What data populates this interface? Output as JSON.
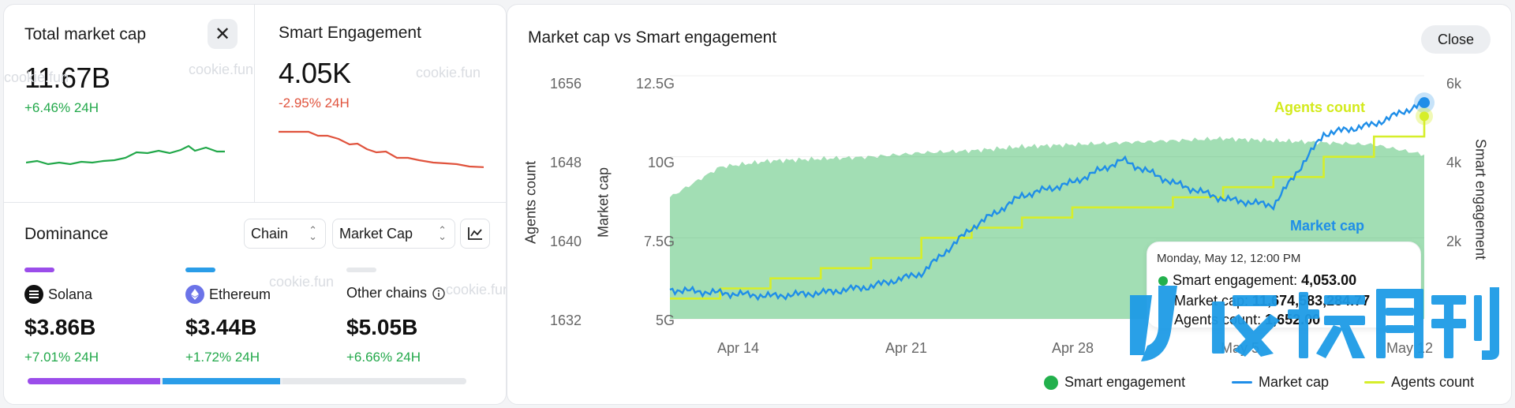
{
  "market_cap_card": {
    "title": "Total market cap",
    "value": "11.67B",
    "change": "+6.46% 24H",
    "close_symbol": "✕"
  },
  "engagement_card": {
    "title": "Smart Engagement",
    "value": "4.05K",
    "change": "-2.95% 24H"
  },
  "watermark": "cookie.fun",
  "dominance": {
    "title": "Dominance",
    "chain_dropdown": "Chain",
    "metric_dropdown": "Market Cap",
    "chains": [
      {
        "name": "Solana",
        "value": "$3.86B",
        "change": "+7.01% 24H",
        "color": "#9b4dea",
        "share": 0.305
      },
      {
        "name": "Ethereum",
        "value": "$3.44B",
        "change": "+1.72% 24H",
        "color": "#2a9de8",
        "share": 0.272
      },
      {
        "name": "Other chains",
        "value": "$5.05B",
        "change": "+6.66% 24H",
        "color": "#e6e8eb",
        "share": 0.423
      }
    ]
  },
  "chart": {
    "title": "Market cap vs Smart engagement",
    "close_label": "Close",
    "agents_axis_label": "Agents count",
    "mcap_axis_label": "Market cap",
    "engagement_axis_label": "Smart engagement",
    "agents_ticks": [
      "1656",
      "1648",
      "1640",
      "1632"
    ],
    "mcap_ticks": [
      "12.5G",
      "10G",
      "7.5G",
      "5G"
    ],
    "engagement_ticks": [
      "6k",
      "4k",
      "2k"
    ],
    "x_ticks": [
      "Apr 14",
      "Apr 21",
      "Apr 28",
      "May 5",
      "May 12"
    ],
    "inline_labels": {
      "agents": "Agents count",
      "mcap": "Market cap"
    },
    "tooltip": {
      "date": "Monday, May 12, 12:00 PM",
      "engagement_label": "Smart engagement: ",
      "engagement_value": "4,053.00",
      "mcap_label": "Market cap: ",
      "mcap_value": "11,674,583,284.77",
      "agents_label": "Agents count: ",
      "agents_value": "1,652.00"
    },
    "legend": [
      "Smart engagement",
      "Market cap",
      "Agents count"
    ],
    "colors": {
      "engagement": "#22b04c",
      "mcap": "#1f8ee8",
      "agents": "#d6ee2a"
    }
  },
  "chart_data": [
    {
      "type": "area",
      "title": "Market cap vs Smart engagement",
      "x": [
        "Apr 12",
        "Apr 14",
        "Apr 16",
        "Apr 18",
        "Apr 20",
        "Apr 22",
        "Apr 24",
        "Apr 26",
        "Apr 28",
        "Apr 30",
        "May 2",
        "May 4",
        "May 6",
        "May 8",
        "May 10",
        "May 12"
      ],
      "series": [
        {
          "name": "Smart engagement",
          "axis": "right",
          "values": [
            3000,
            3750,
            3900,
            3950,
            4000,
            4100,
            4150,
            4250,
            4300,
            4350,
            4400,
            4450,
            4400,
            4350,
            4300,
            4053
          ]
        },
        {
          "name": "Market cap",
          "axis": "left",
          "values": [
            5900000000.0,
            5800000000.0,
            5700000000.0,
            5800000000.0,
            6000000000.0,
            6400000000.0,
            7800000000.0,
            8800000000.0,
            9200000000.0,
            9900000000.0,
            9200000000.0,
            8700000000.0,
            8500000000.0,
            10700000000.0,
            11000000000.0,
            11670000000.0
          ]
        },
        {
          "name": "Agents count",
          "axis": "agents",
          "values": [
            1634,
            1635,
            1636,
            1637,
            1638,
            1640,
            1641,
            1642,
            1643,
            1643,
            1644,
            1645,
            1646,
            1648,
            1650,
            1652
          ]
        }
      ],
      "xlabel": "",
      "ylabel_left": "Market cap",
      "ylabel_agents": "Agents count",
      "ylabel_right": "Smart engagement",
      "ylim_mcap": [
        5000000000.0,
        12500000000.0
      ],
      "ylim_agents": [
        1632,
        1656
      ],
      "ylim_engagement": [
        0,
        6000
      ],
      "legend": "bottom-right",
      "grid": true
    }
  ]
}
